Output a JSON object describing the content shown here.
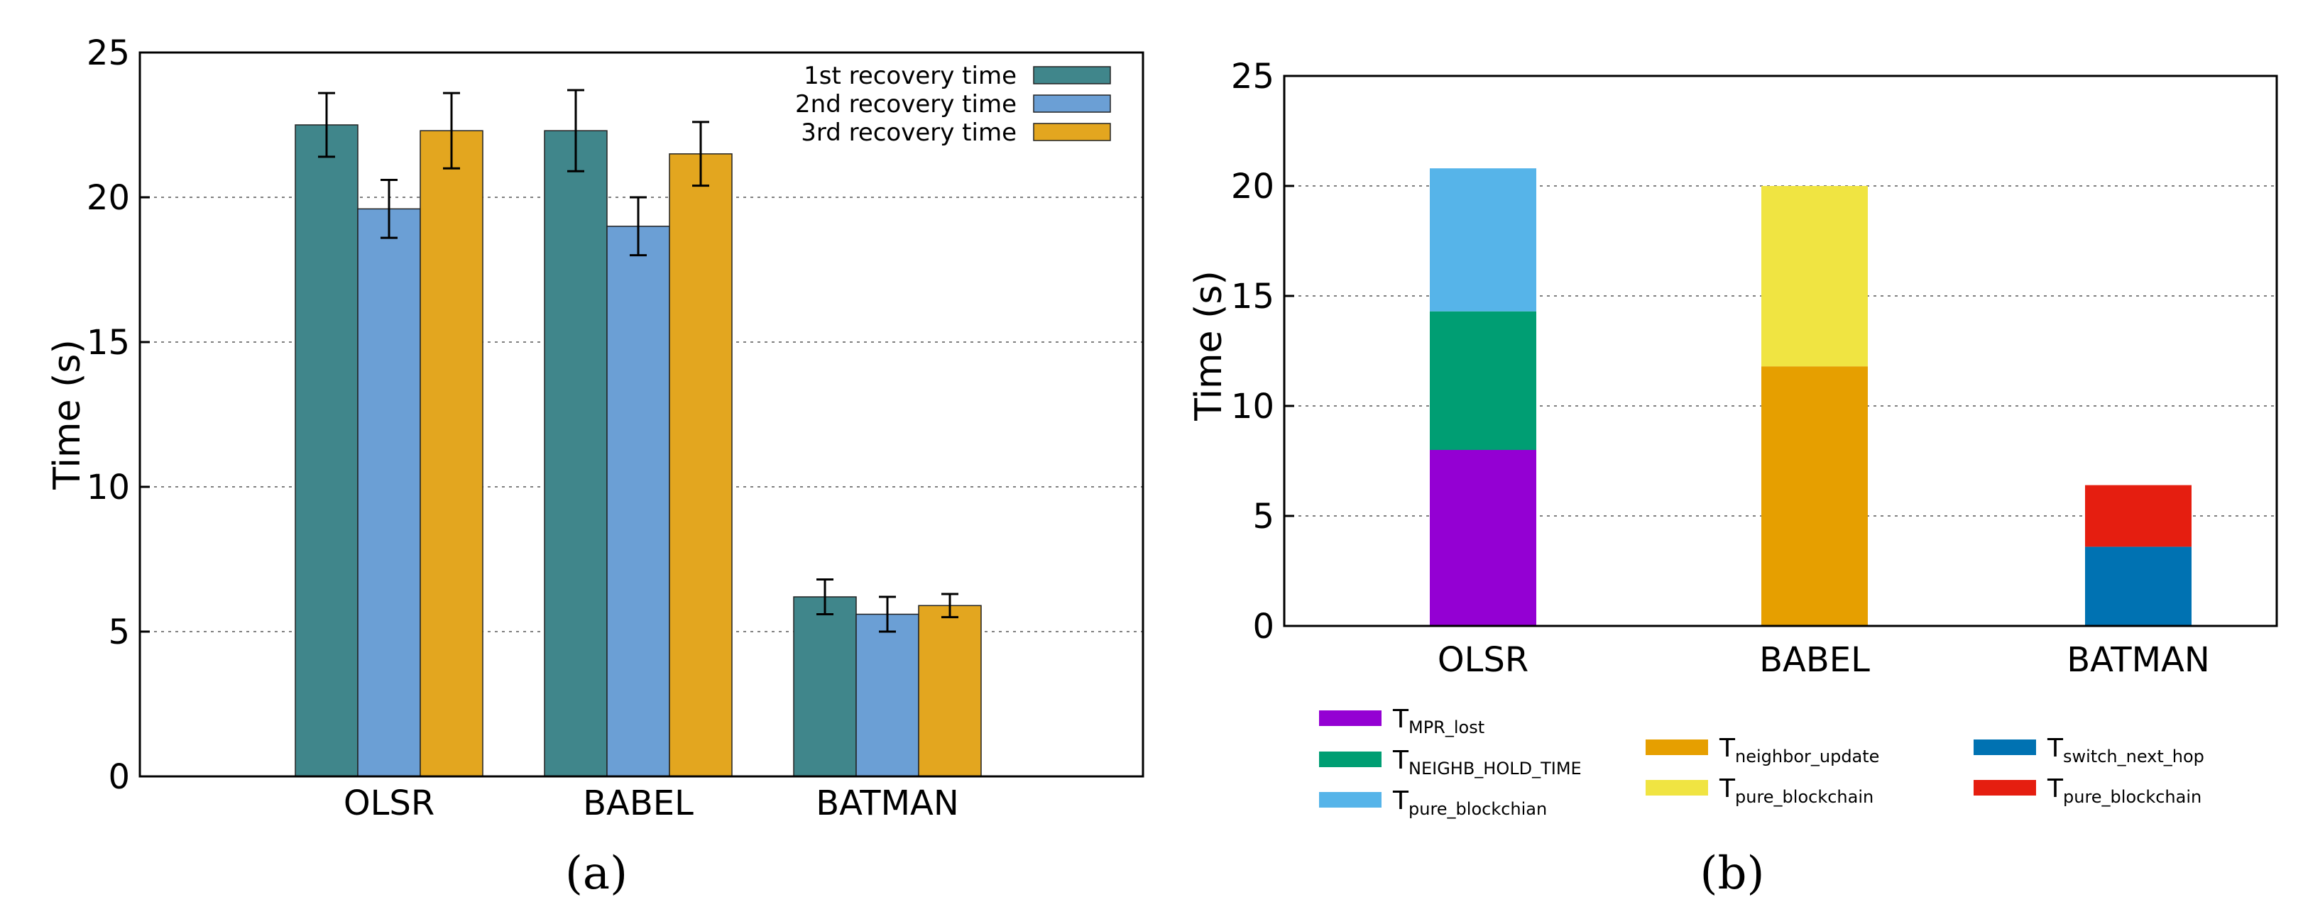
{
  "chart_data": [
    {
      "type": "bar",
      "title": "",
      "xlabel": "",
      "ylabel": "Time (s)",
      "ylim": [
        0,
        25
      ],
      "yticks": [
        0,
        5,
        10,
        15,
        20,
        25
      ],
      "grid": true,
      "legend_position": "top-right",
      "caption": "(a)",
      "categories": [
        "OLSR",
        "BABEL",
        "BATMAN"
      ],
      "series": [
        {
          "name": "1st recovery time",
          "color": "#40868b",
          "values": [
            22.5,
            22.3,
            6.2
          ],
          "errors": [
            1.1,
            1.4,
            0.6
          ]
        },
        {
          "name": "2nd recovery time",
          "color": "#6b9fd5",
          "values": [
            19.6,
            19.0,
            5.6
          ],
          "errors": [
            1.0,
            1.0,
            0.6
          ]
        },
        {
          "name": "3rd recovery time",
          "color": "#e3a61f",
          "values": [
            22.3,
            21.5,
            5.9
          ],
          "errors": [
            1.3,
            1.1,
            0.4
          ]
        }
      ]
    },
    {
      "type": "bar",
      "stacked": true,
      "title": "",
      "xlabel": "",
      "ylabel": "Time (s)",
      "ylim": [
        0,
        25
      ],
      "yticks": [
        0,
        5,
        10,
        15,
        20,
        25
      ],
      "grid": true,
      "legend_position": "bottom",
      "caption": "(b)",
      "categories": [
        "OLSR",
        "BABEL",
        "BATMAN"
      ],
      "stacks": [
        {
          "category": "OLSR",
          "segments": [
            {
              "base": "T",
              "sub": "MPR_lost",
              "value": 8.0,
              "color": "#9400d3"
            },
            {
              "base": "T",
              "sub": "NEIGHB_HOLD_TIME",
              "value": 6.3,
              "color": "#009e73"
            },
            {
              "base": "T",
              "sub": "pure_blockchian",
              "value": 6.5,
              "color": "#56b4e9"
            }
          ]
        },
        {
          "category": "BABEL",
          "segments": [
            {
              "base": "T",
              "sub": "neighbor_update",
              "value": 11.8,
              "color": "#e69f00"
            },
            {
              "base": "T",
              "sub": "pure_blockchain",
              "value": 8.2,
              "color": "#f0e442"
            }
          ]
        },
        {
          "category": "BATMAN",
          "segments": [
            {
              "base": "T",
              "sub": "switch_next_hop",
              "value": 3.6,
              "color": "#0072b2"
            },
            {
              "base": "T",
              "sub": "pure_blockchain",
              "value": 2.8,
              "color": "#e51e10"
            }
          ]
        }
      ]
    }
  ]
}
